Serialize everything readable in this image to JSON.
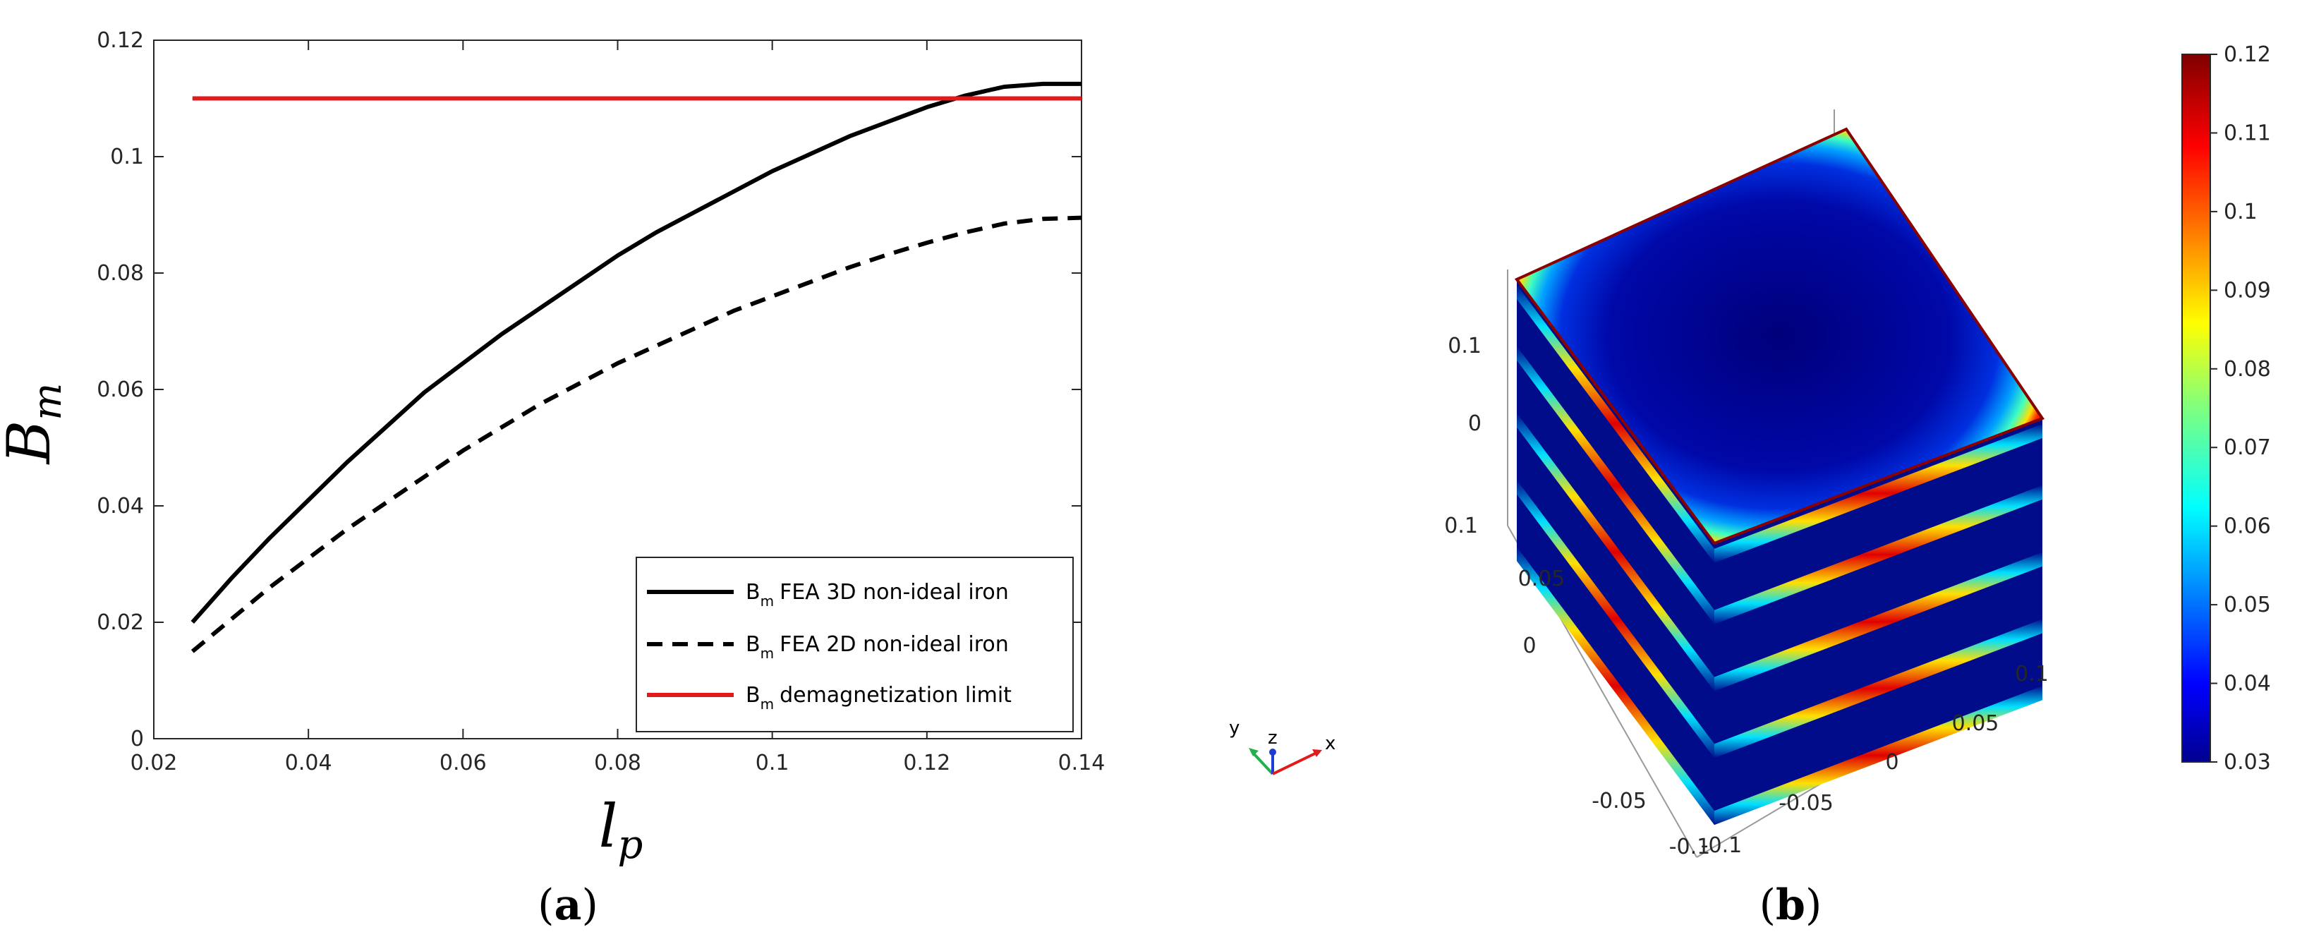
{
  "chart_data": [
    {
      "type": "line",
      "panel_label": "a",
      "xlabel": "l",
      "xlabel_sub": "p",
      "ylabel": "B",
      "ylabel_sub": "m",
      "xlim": [
        0.02,
        0.14
      ],
      "ylim": [
        0,
        0.12
      ],
      "xticks": [
        0.02,
        0.04,
        0.06,
        0.08,
        0.1,
        0.12,
        0.14
      ],
      "yticks": [
        0,
        0.02,
        0.04,
        0.06,
        0.08,
        0.1,
        0.12
      ],
      "xtick_labels": [
        "0.02",
        "0.04",
        "0.06",
        "0.08",
        "0.1",
        "0.12",
        "0.14"
      ],
      "ytick_labels": [
        "0",
        "0.02",
        "0.04",
        "0.06",
        "0.08",
        "0.1",
        "0.12"
      ],
      "grid": false,
      "legend_position": "bottom-right",
      "series": [
        {
          "name": "FEA 3D non-ideal iron",
          "legend_main": "B",
          "legend_sub": "m",
          "legend_rest": "FEA 3D non-ideal iron",
          "color": "#000000",
          "style": "solid",
          "x": [
            0.025,
            0.03,
            0.035,
            0.04,
            0.045,
            0.05,
            0.055,
            0.06,
            0.065,
            0.07,
            0.075,
            0.08,
            0.085,
            0.09,
            0.095,
            0.1,
            0.105,
            0.11,
            0.115,
            0.12,
            0.125,
            0.13,
            0.135,
            0.14
          ],
          "y": [
            0.02,
            0.0275,
            0.0345,
            0.041,
            0.0475,
            0.0535,
            0.0595,
            0.0645,
            0.0695,
            0.074,
            0.0785,
            0.083,
            0.087,
            0.0905,
            0.094,
            0.0975,
            0.1005,
            0.1035,
            0.106,
            0.1085,
            0.1105,
            0.112,
            0.1125,
            0.1125
          ]
        },
        {
          "name": "FEA 2D non-ideal iron",
          "legend_main": "B",
          "legend_sub": "m",
          "legend_rest": "FEA 2D non-ideal iron",
          "color": "#000000",
          "style": "dashed",
          "x": [
            0.025,
            0.03,
            0.035,
            0.04,
            0.045,
            0.05,
            0.055,
            0.06,
            0.065,
            0.07,
            0.075,
            0.08,
            0.085,
            0.09,
            0.095,
            0.1,
            0.105,
            0.11,
            0.115,
            0.12,
            0.125,
            0.13,
            0.135,
            0.14
          ],
          "y": [
            0.015,
            0.0205,
            0.026,
            0.031,
            0.036,
            0.0405,
            0.045,
            0.0495,
            0.0535,
            0.0575,
            0.061,
            0.0645,
            0.0675,
            0.0705,
            0.0735,
            0.076,
            0.0785,
            0.081,
            0.0832,
            0.0852,
            0.087,
            0.0885,
            0.0893,
            0.0895
          ]
        },
        {
          "name": "demagnetization limit",
          "legend_main": "B",
          "legend_sub": "m",
          "legend_rest": "demagnetization limit",
          "color": "#e31a1c",
          "style": "solid",
          "x": [
            0.025,
            0.14
          ],
          "y": [
            0.11,
            0.11
          ]
        }
      ]
    },
    {
      "type": "heatmap",
      "panel_label": "b",
      "description_kind": "3d-surface-plot",
      "colorbar_ticks": [
        0.03,
        0.04,
        0.05,
        0.06,
        0.07,
        0.08,
        0.09,
        0.1,
        0.11,
        0.12
      ],
      "colorbar_tick_labels": [
        "0.03",
        "0.04",
        "0.05",
        "0.06",
        "0.07",
        "0.08",
        "0.09",
        "0.1",
        "0.11",
        "0.12"
      ],
      "clim": [
        0.03,
        0.12
      ],
      "colormap": "jet",
      "z_tick_labels": [
        "0.1",
        "0",
        "0.1"
      ],
      "x_tick_labels": [
        "0.1",
        "0.05",
        "0",
        "-0.05",
        "-0.1"
      ],
      "y_tick_labels": [
        "0.05",
        "0",
        "-0.05",
        "-0.1"
      ],
      "triad_labels": {
        "x": "x",
        "y": "y",
        "z": "z"
      }
    }
  ],
  "colors": {
    "black": "#000000",
    "red": "#e31a1c",
    "axis": "#262626"
  }
}
